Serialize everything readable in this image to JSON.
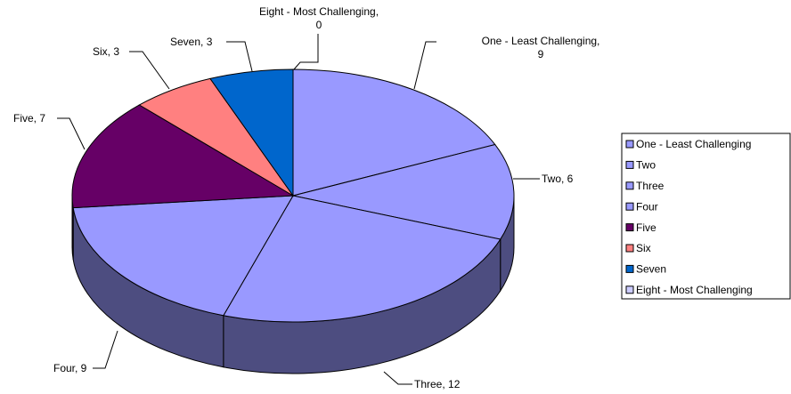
{
  "chart_data": {
    "type": "pie3d",
    "categories": [
      "One - Least Challenging",
      "Two",
      "Three",
      "Four",
      "Five",
      "Six",
      "Seven",
      "Eight - Most Challenging"
    ],
    "values": [
      9,
      6,
      12,
      9,
      7,
      3,
      3,
      0
    ],
    "value_labels": [
      "One - Least Challenging, 9",
      "Two, 6",
      "Three, 12",
      "Four, 9",
      "Five, 7",
      "Six, 3",
      "Seven, 3",
      "Eight - Most Challenging, 0"
    ],
    "colors": [
      "#9999ff",
      "#9999ff",
      "#9999ff",
      "#9999ff",
      "#660066",
      "#ff8080",
      "#0066cc",
      "#ccccff"
    ],
    "legend": "right"
  }
}
